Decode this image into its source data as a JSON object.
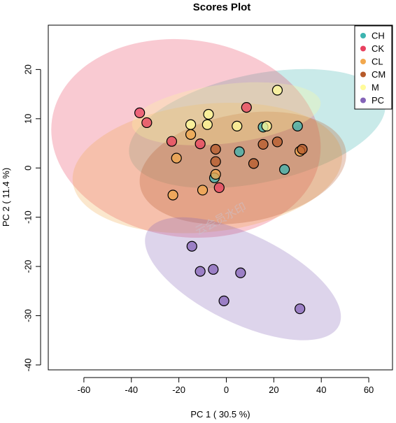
{
  "chart_data": {
    "type": "scatter",
    "title": "Scores Plot",
    "xlabel": "PC 1 ( 30.5 %)",
    "ylabel": "PC 2 ( 11.4 %)",
    "xlim": [
      -75,
      70
    ],
    "ylim": [
      -41,
      29
    ],
    "xticks": [
      -60,
      -40,
      -20,
      0,
      20,
      40,
      60
    ],
    "yticks": [
      -40,
      -30,
      -20,
      -10,
      0,
      10,
      20
    ],
    "grid": false,
    "legend_position": "top-right",
    "watermark": "云会员水印",
    "series": [
      {
        "name": "CH",
        "color": "#3cb4b0",
        "ellipse": {
          "cx": 13,
          "cy": 8,
          "rx": 55,
          "ry": 11,
          "angle_deg": 12
        },
        "points": [
          [
            5.5,
            3.3
          ],
          [
            15.5,
            8.3
          ],
          [
            24.5,
            -0.3
          ],
          [
            30,
            8.5
          ],
          [
            -5,
            -2
          ]
        ]
      },
      {
        "name": "CK",
        "color": "#e8405f",
        "ellipse": {
          "cx": -17,
          "cy": 6,
          "rx": 57,
          "ry": 20,
          "angle_deg": -8
        },
        "points": [
          [
            -36.5,
            11.2
          ],
          [
            -33.5,
            9.2
          ],
          [
            -23,
            5.4
          ],
          [
            -11,
            4.9
          ],
          [
            8.5,
            12.3
          ],
          [
            -3,
            -4
          ]
        ]
      },
      {
        "name": "CL",
        "color": "#f2a84d",
        "ellipse": {
          "cx": -8,
          "cy": 0,
          "rx": 57,
          "ry": 13,
          "angle_deg": 6
        },
        "points": [
          [
            -21,
            2
          ],
          [
            -15,
            6.8
          ],
          [
            -10,
            -4.5
          ],
          [
            -4.5,
            -1.3
          ],
          [
            31,
            3.4
          ],
          [
            -22.5,
            -5.5
          ]
        ]
      },
      {
        "name": "CM",
        "color": "#b65a2a",
        "ellipse": {
          "cx": 7,
          "cy": 0,
          "rx": 44,
          "ry": 11,
          "angle_deg": 10
        },
        "points": [
          [
            -4.5,
            3.8
          ],
          [
            -4.5,
            1.3
          ],
          [
            11.5,
            0.9
          ],
          [
            15.5,
            4.8
          ],
          [
            21.5,
            5.3
          ],
          [
            32,
            3.8
          ]
        ]
      },
      {
        "name": "M",
        "color": "#fffb9a",
        "ellipse": {
          "cx": 0,
          "cy": 11,
          "rx": 40,
          "ry": 6,
          "angle_deg": 7
        },
        "points": [
          [
            -15,
            8.8
          ],
          [
            -8,
            8.8
          ],
          [
            -7.5,
            10.9
          ],
          [
            4.5,
            8.5
          ],
          [
            17,
            8.5
          ],
          [
            21.5,
            15.8
          ]
        ]
      },
      {
        "name": "PC",
        "color": "#8463b8",
        "ellipse": {
          "cx": 7,
          "cy": -22.5,
          "rx": 45,
          "ry": 9,
          "angle_deg": -26
        },
        "points": [
          [
            -14.5,
            -15.9
          ],
          [
            -11,
            -21
          ],
          [
            -5.5,
            -20.6
          ],
          [
            6,
            -21.3
          ],
          [
            -1,
            -27
          ],
          [
            31,
            -28.6
          ]
        ]
      }
    ]
  }
}
